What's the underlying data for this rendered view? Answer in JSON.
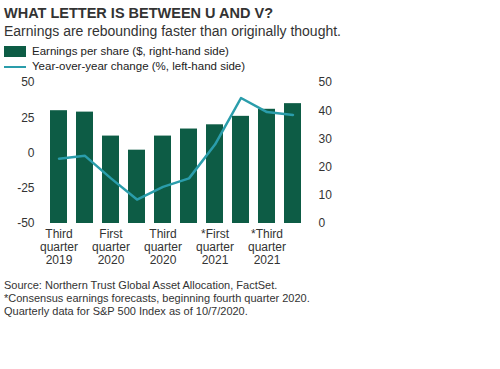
{
  "chart_data": {
    "type": "bar",
    "title": "WHAT LETTER IS BETWEEN U AND V?",
    "subtitle": "Earnings are rebounding faster than originally thought.",
    "caption": "Source: Northern Trust Global Asset Allocation, FactSet. *Consensus earnings forecasts, beginning fourth quarter 2020. Quarterly data for S&P 500 Index as of 10/7/2020.",
    "categories": [
      "Third quarter 2019",
      null,
      "First quarter 2020",
      null,
      "Third quarter 2020",
      null,
      "*First quarter 2021",
      null,
      "*Third quarter 2021",
      null
    ],
    "series": [
      {
        "name": "Earnings per share ($, right-hand side)",
        "type": "bar",
        "axis": "y2",
        "color": "#0d5c45",
        "values": [
          40,
          39.5,
          31,
          26,
          31,
          33.5,
          35,
          38,
          40.5,
          42.5
        ]
      },
      {
        "name": "Year-over-year change (%, left-hand side)",
        "type": "line",
        "color": "#2a9dab",
        "values": [
          -4,
          -2,
          -18,
          -33,
          -24,
          -18,
          6,
          39,
          29,
          27
        ]
      }
    ],
    "ylim": [
      -50,
      50
    ],
    "yticks": [
      -50,
      -25,
      0,
      25,
      50
    ],
    "y2lim": [
      0,
      50
    ],
    "y2ticks": [
      0,
      10,
      20,
      30,
      40,
      50
    ],
    "legend": "top",
    "grid": false
  }
}
